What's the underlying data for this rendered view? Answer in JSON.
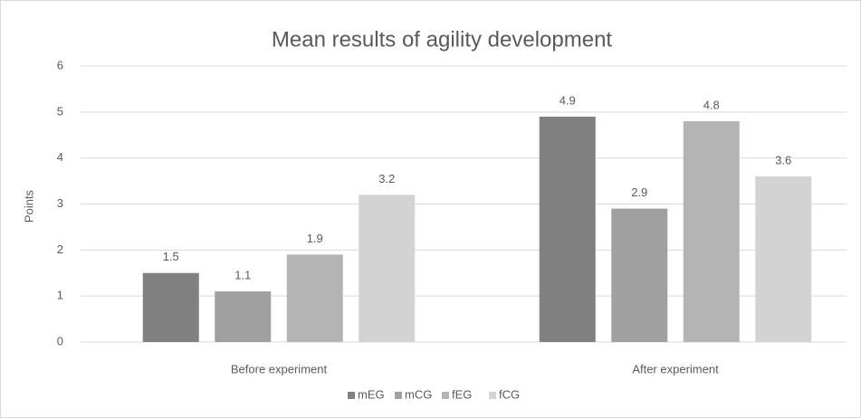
{
  "chart_data": {
    "type": "bar",
    "title": "Mean results of agility development",
    "y_label": "Points",
    "categories": [
      "Before experiment",
      "After experiment"
    ],
    "series": [
      {
        "name": "mEG",
        "color": "#808080",
        "values": [
          1.5,
          4.9
        ]
      },
      {
        "name": "mCG",
        "color": "#a0a0a0",
        "values": [
          1.1,
          2.9
        ]
      },
      {
        "name": "fEG",
        "color": "#b4b4b4",
        "values": [
          1.9,
          4.8
        ]
      },
      {
        "name": "fCG",
        "color": "#d3d3d3",
        "values": [
          3.2,
          3.6
        ]
      }
    ],
    "ylim": [
      0,
      6
    ],
    "yticks": [
      0,
      1,
      2,
      3,
      4,
      5,
      6
    ],
    "grid": true,
    "legend": "bottom"
  }
}
